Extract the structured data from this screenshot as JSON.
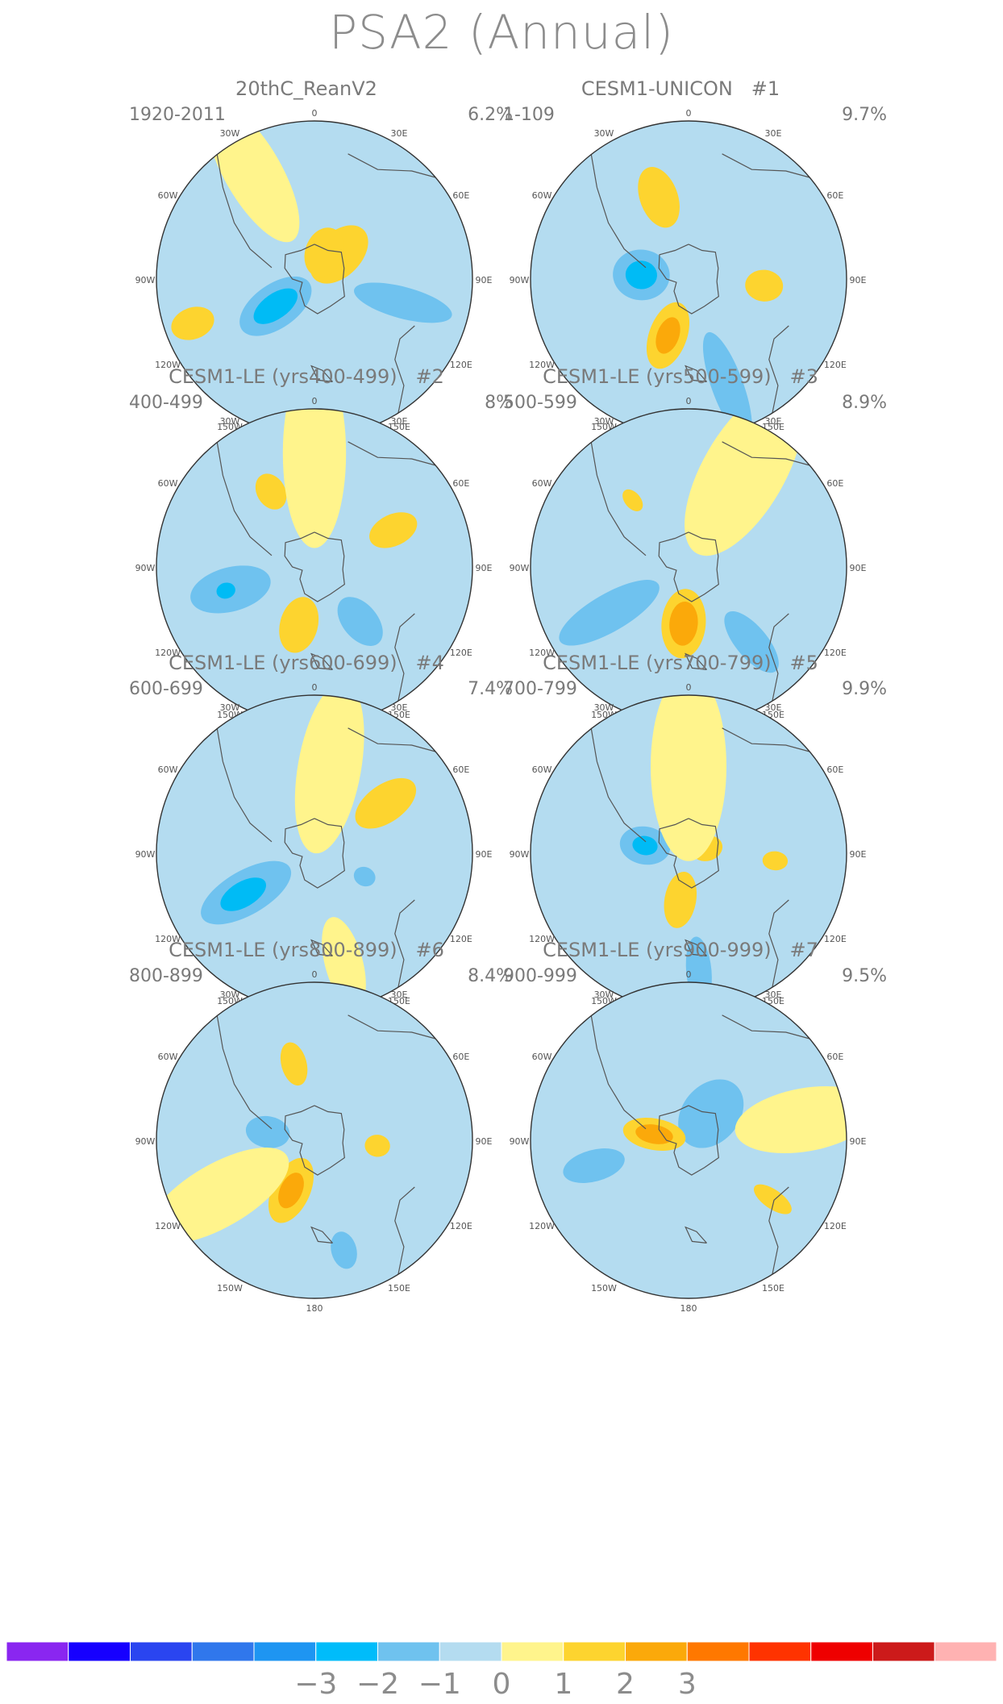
{
  "title": "PSA2 (Annual)",
  "palette": {
    "ocean_neutral": "#b4dcf0",
    "positive_weak": "#fff48c",
    "positive_mid": "#fdd42f",
    "positive_strong": "#fba90a",
    "negative_mid": "#6fc2ef",
    "negative_strong": "#00bbf5",
    "negative_core": "#1c96f0",
    "coast": "#555555"
  },
  "lon_labels": [
    "0",
    "30E",
    "60E",
    "90E",
    "120E",
    "150E",
    "180",
    "150W",
    "120W",
    "90W",
    "60W",
    "30W"
  ],
  "panels": [
    {
      "title": "20thC_ReanV2",
      "number": "",
      "years": "1920-2011",
      "percent": "6.2%",
      "blobs": [
        {
          "lon": 45,
          "r": 0.22,
          "len": 0.22,
          "wid": 0.14,
          "level": "p2"
        },
        {
          "lon": 20,
          "r": 0.18,
          "len": 0.16,
          "wid": 0.12,
          "level": "p2"
        },
        {
          "lon": 235,
          "r": 0.3,
          "len": 0.26,
          "wid": 0.14,
          "level": "n2"
        },
        {
          "lon": 235,
          "r": 0.3,
          "len": 0.16,
          "wid": 0.08,
          "level": "n3"
        },
        {
          "lon": 105,
          "r": 0.58,
          "len": 0.32,
          "wid": 0.1,
          "level": "n2"
        },
        {
          "lon": 250,
          "r": 0.82,
          "len": 0.14,
          "wid": 0.1,
          "level": "p2"
        },
        {
          "lon": 330,
          "r": 0.78,
          "len": 0.5,
          "wid": 0.18,
          "level": "p1"
        }
      ]
    },
    {
      "title": "CESM1-UNICON",
      "number": "#1",
      "years": "1-109",
      "percent": "9.7%",
      "blobs": [
        {
          "lon": 275,
          "r": 0.3,
          "len": 0.18,
          "wid": 0.16,
          "level": "n2"
        },
        {
          "lon": 275,
          "r": 0.3,
          "len": 0.1,
          "wid": 0.09,
          "level": "n3"
        },
        {
          "lon": 200,
          "r": 0.38,
          "len": 0.22,
          "wid": 0.12,
          "level": "p2"
        },
        {
          "lon": 200,
          "r": 0.38,
          "len": 0.12,
          "wid": 0.07,
          "level": "p3"
        },
        {
          "lon": 340,
          "r": 0.55,
          "len": 0.2,
          "wid": 0.12,
          "level": "p2"
        },
        {
          "lon": 95,
          "r": 0.48,
          "len": 0.12,
          "wid": 0.1,
          "level": "p2"
        },
        {
          "lon": 160,
          "r": 0.72,
          "len": 0.36,
          "wid": 0.1,
          "level": "n2"
        }
      ]
    },
    {
      "title": "CESM1-LE (yrs400-499)",
      "number": "#2",
      "years": "400-499",
      "percent": "8%",
      "blobs": [
        {
          "lon": 195,
          "r": 0.38,
          "len": 0.18,
          "wid": 0.12,
          "level": "p2"
        },
        {
          "lon": 255,
          "r": 0.55,
          "len": 0.26,
          "wid": 0.14,
          "level": "n2"
        },
        {
          "lon": 255,
          "r": 0.58,
          "len": 0.06,
          "wid": 0.05,
          "level": "n3"
        },
        {
          "lon": 140,
          "r": 0.45,
          "len": 0.18,
          "wid": 0.11,
          "level": "n2"
        },
        {
          "lon": 330,
          "r": 0.55,
          "len": 0.12,
          "wid": 0.09,
          "level": "p2"
        },
        {
          "lon": 65,
          "r": 0.55,
          "len": 0.16,
          "wid": 0.1,
          "level": "p2"
        },
        {
          "lon": 0,
          "r": 0.72,
          "len": 0.6,
          "wid": 0.2,
          "level": "p1"
        }
      ]
    },
    {
      "title": "CESM1-LE (yrs500-599)",
      "number": "#3",
      "years": "500-599",
      "percent": "8.9%",
      "blobs": [
        {
          "lon": 185,
          "r": 0.36,
          "len": 0.22,
          "wid": 0.14,
          "level": "p2"
        },
        {
          "lon": 185,
          "r": 0.36,
          "len": 0.14,
          "wid": 0.09,
          "level": "p3"
        },
        {
          "lon": 240,
          "r": 0.58,
          "len": 0.36,
          "wid": 0.12,
          "level": "n2"
        },
        {
          "lon": 140,
          "r": 0.62,
          "len": 0.24,
          "wid": 0.1,
          "level": "n2"
        },
        {
          "lon": 320,
          "r": 0.55,
          "len": 0.08,
          "wid": 0.05,
          "level": "p2"
        },
        {
          "lon": 30,
          "r": 0.7,
          "len": 0.6,
          "wid": 0.26,
          "level": "p1"
        }
      ]
    },
    {
      "title": "CESM1-LE (yrs600-699)",
      "number": "#4",
      "years": "600-699",
      "percent": "7.4%",
      "blobs": [
        {
          "lon": 240,
          "r": 0.5,
          "len": 0.32,
          "wid": 0.14,
          "level": "n2"
        },
        {
          "lon": 240,
          "r": 0.52,
          "len": 0.16,
          "wid": 0.08,
          "level": "n3"
        },
        {
          "lon": 55,
          "r": 0.55,
          "len": 0.22,
          "wid": 0.12,
          "level": "p2"
        },
        {
          "lon": 115,
          "r": 0.35,
          "len": 0.07,
          "wid": 0.06,
          "level": "n2"
        },
        {
          "lon": 10,
          "r": 0.55,
          "len": 0.55,
          "wid": 0.2,
          "level": "p1"
        },
        {
          "lon": 165,
          "r": 0.72,
          "len": 0.3,
          "wid": 0.12,
          "level": "p1"
        }
      ]
    },
    {
      "title": "CESM1-LE (yrs700-799)",
      "number": "#5",
      "years": "700-799",
      "percent": "9.9%",
      "blobs": [
        {
          "lon": 280,
          "r": 0.28,
          "len": 0.16,
          "wid": 0.12,
          "level": "n2"
        },
        {
          "lon": 280,
          "r": 0.28,
          "len": 0.08,
          "wid": 0.06,
          "level": "n3"
        },
        {
          "lon": 10,
          "r": 0.45,
          "len": 0.18,
          "wid": 0.12,
          "level": "p2"
        },
        {
          "lon": 190,
          "r": 0.3,
          "len": 0.18,
          "wid": 0.1,
          "level": "p2"
        },
        {
          "lon": 75,
          "r": 0.12,
          "len": 0.1,
          "wid": 0.08,
          "level": "p2"
        },
        {
          "lon": 95,
          "r": 0.55,
          "len": 0.08,
          "wid": 0.06,
          "level": "p2"
        },
        {
          "lon": 175,
          "r": 0.75,
          "len": 0.22,
          "wid": 0.08,
          "level": "n2"
        },
        {
          "lon": 0,
          "r": 0.55,
          "len": 0.6,
          "wid": 0.24,
          "level": "p1"
        }
      ]
    },
    {
      "title": "CESM1-LE (yrs800-899)",
      "number": "#6",
      "years": "800-899",
      "percent": "8.4%",
      "blobs": [
        {
          "lon": 205,
          "r": 0.35,
          "len": 0.22,
          "wid": 0.12,
          "level": "p2"
        },
        {
          "lon": 205,
          "r": 0.35,
          "len": 0.12,
          "wid": 0.07,
          "level": "p3"
        },
        {
          "lon": 280,
          "r": 0.3,
          "len": 0.14,
          "wid": 0.1,
          "level": "n2"
        },
        {
          "lon": 345,
          "r": 0.5,
          "len": 0.14,
          "wid": 0.08,
          "level": "p2"
        },
        {
          "lon": 95,
          "r": 0.4,
          "len": 0.08,
          "wid": 0.07,
          "level": "p2"
        },
        {
          "lon": 165,
          "r": 0.72,
          "len": 0.12,
          "wid": 0.08,
          "level": "n2"
        },
        {
          "lon": 240,
          "r": 0.7,
          "len": 0.5,
          "wid": 0.2,
          "level": "p1"
        }
      ]
    },
    {
      "title": "CESM1-LE (yrs900-999)",
      "number": "#7",
      "years": "900-999",
      "percent": "9.5%",
      "blobs": [
        {
          "lon": 40,
          "r": 0.22,
          "len": 0.24,
          "wid": 0.18,
          "level": "n2"
        },
        {
          "lon": 280,
          "r": 0.22,
          "len": 0.2,
          "wid": 0.1,
          "level": "p2"
        },
        {
          "lon": 280,
          "r": 0.22,
          "len": 0.12,
          "wid": 0.06,
          "level": "p3"
        },
        {
          "lon": 255,
          "r": 0.62,
          "len": 0.2,
          "wid": 0.1,
          "level": "n2"
        },
        {
          "lon": 125,
          "r": 0.65,
          "len": 0.14,
          "wid": 0.06,
          "level": "p2"
        },
        {
          "lon": 80,
          "r": 0.75,
          "len": 0.45,
          "wid": 0.2,
          "level": "p1"
        }
      ]
    }
  ],
  "colorbar": {
    "colors": [
      "#8a26f0",
      "#1600ff",
      "#2a45f0",
      "#3077ec",
      "#1e95f2",
      "#00bcfa",
      "#6fc2ef",
      "#b4dcf0",
      "#fff48c",
      "#fdd42f",
      "#fba90a",
      "#ff7800",
      "#ff3300",
      "#ef0000",
      "#cc1a1a",
      "#ffb2b2"
    ],
    "tick_labels": [
      "−3",
      "−2",
      "−1",
      "0",
      "1",
      "2",
      "3"
    ],
    "tick_values": [
      -3,
      -2,
      -1,
      0,
      1,
      2,
      3
    ]
  }
}
